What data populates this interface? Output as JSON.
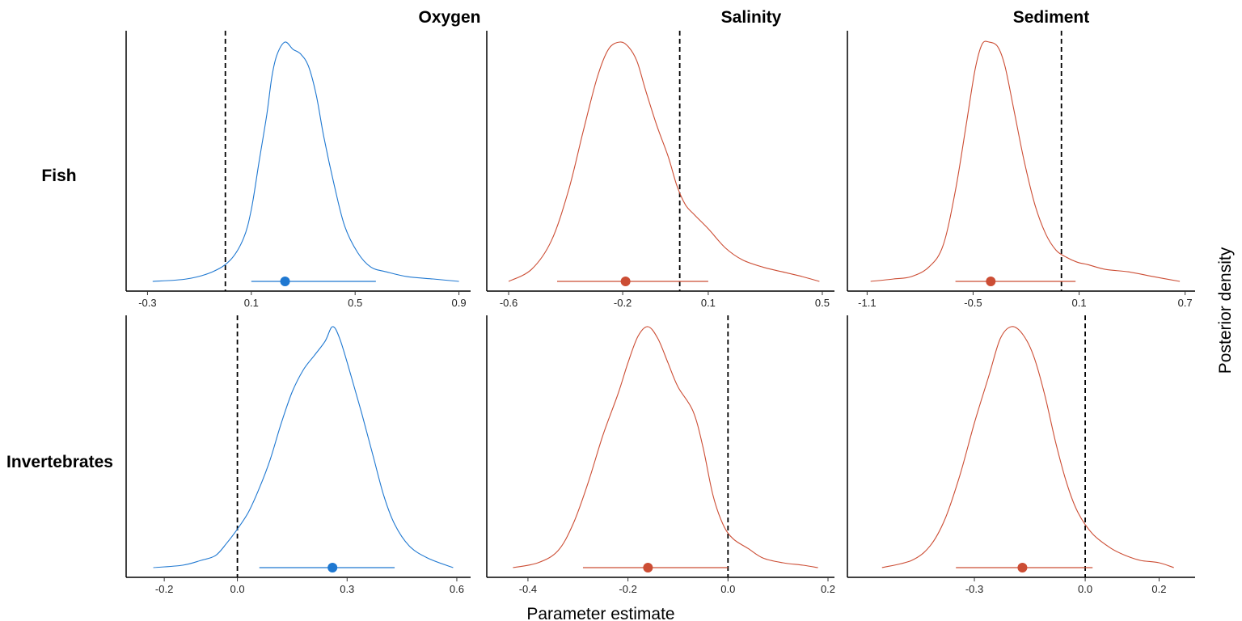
{
  "chart_data": {
    "type": "density-facet",
    "xlabel": "Parameter estimate",
    "ylabel": "Posterior density",
    "columns": [
      "Oxygen",
      "Salinity",
      "Sediment"
    ],
    "rows": [
      "Fish",
      "Invertebrates"
    ],
    "colors": {
      "positive": "#1f78d1",
      "negative": "#cc4d34",
      "reference": "#000000"
    },
    "panels": [
      {
        "row": "Fish",
        "column": "Oxygen",
        "color": "positive",
        "xlim": [
          -0.32,
          0.92
        ],
        "ticks": [
          "-0.3",
          "0.1",
          "0.5",
          "0.9"
        ],
        "tick_values": [
          -0.3,
          0.1,
          0.5,
          0.9
        ],
        "zero_line": 0,
        "density": [
          [
            -0.28,
            0.0
          ],
          [
            -0.15,
            0.01
          ],
          [
            -0.05,
            0.04
          ],
          [
            0.02,
            0.09
          ],
          [
            0.07,
            0.18
          ],
          [
            0.1,
            0.3
          ],
          [
            0.13,
            0.5
          ],
          [
            0.16,
            0.7
          ],
          [
            0.18,
            0.86
          ],
          [
            0.2,
            0.95
          ],
          [
            0.23,
            1.0
          ],
          [
            0.26,
            0.97
          ],
          [
            0.29,
            0.95
          ],
          [
            0.32,
            0.9
          ],
          [
            0.35,
            0.78
          ],
          [
            0.38,
            0.6
          ],
          [
            0.42,
            0.4
          ],
          [
            0.46,
            0.23
          ],
          [
            0.51,
            0.12
          ],
          [
            0.56,
            0.06
          ],
          [
            0.62,
            0.04
          ],
          [
            0.7,
            0.02
          ],
          [
            0.8,
            0.01
          ],
          [
            0.9,
            0.0
          ]
        ],
        "point": 0.23,
        "interval": [
          0.1,
          0.58
        ]
      },
      {
        "row": "Fish",
        "column": "Salinity",
        "color": "negative",
        "xlim": [
          -0.62,
          0.52
        ],
        "ticks": [
          "-0.6",
          "-0.2",
          "0.1",
          "0.5"
        ],
        "tick_values": [
          -0.6,
          -0.2,
          0.1,
          0.5
        ],
        "zero_line": 0,
        "density": [
          [
            -0.6,
            0.0
          ],
          [
            -0.52,
            0.05
          ],
          [
            -0.45,
            0.17
          ],
          [
            -0.39,
            0.38
          ],
          [
            -0.34,
            0.62
          ],
          [
            -0.29,
            0.85
          ],
          [
            -0.25,
            0.97
          ],
          [
            -0.21,
            1.0
          ],
          [
            -0.18,
            0.98
          ],
          [
            -0.15,
            0.92
          ],
          [
            -0.12,
            0.8
          ],
          [
            -0.08,
            0.65
          ],
          [
            -0.04,
            0.52
          ],
          [
            -0.01,
            0.4
          ],
          [
            0.02,
            0.32
          ],
          [
            0.05,
            0.28
          ],
          [
            0.1,
            0.22
          ],
          [
            0.16,
            0.14
          ],
          [
            0.22,
            0.09
          ],
          [
            0.29,
            0.06
          ],
          [
            0.36,
            0.04
          ],
          [
            0.43,
            0.02
          ],
          [
            0.49,
            0.0
          ]
        ],
        "point": -0.19,
        "interval": [
          -0.43,
          0.1
        ]
      },
      {
        "row": "Fish",
        "column": "Sediment",
        "color": "negative",
        "xlim": [
          -1.12,
          0.72
        ],
        "ticks": [
          "-1.1",
          "-0.5",
          "0.1",
          "0.7"
        ],
        "tick_values": [
          -1.1,
          -0.5,
          0.1,
          0.7
        ],
        "zero_line": 0,
        "density": [
          [
            -1.08,
            0.0
          ],
          [
            -0.95,
            0.01
          ],
          [
            -0.85,
            0.02
          ],
          [
            -0.75,
            0.06
          ],
          [
            -0.67,
            0.15
          ],
          [
            -0.6,
            0.38
          ],
          [
            -0.54,
            0.65
          ],
          [
            -0.49,
            0.88
          ],
          [
            -0.45,
            0.99
          ],
          [
            -0.41,
            1.0
          ],
          [
            -0.36,
            0.98
          ],
          [
            -0.32,
            0.9
          ],
          [
            -0.27,
            0.72
          ],
          [
            -0.21,
            0.5
          ],
          [
            -0.15,
            0.32
          ],
          [
            -0.09,
            0.2
          ],
          [
            -0.03,
            0.13
          ],
          [
            0.03,
            0.1
          ],
          [
            0.09,
            0.08
          ],
          [
            0.15,
            0.07
          ],
          [
            0.25,
            0.05
          ],
          [
            0.38,
            0.04
          ],
          [
            0.52,
            0.02
          ],
          [
            0.67,
            0.0
          ]
        ],
        "point": -0.4,
        "interval": [
          -0.6,
          0.08
        ]
      },
      {
        "row": "Invertebrates",
        "column": "Oxygen",
        "color": "positive",
        "xlim": [
          -0.26,
          0.62
        ],
        "ticks": [
          "-0.2",
          "0.0",
          "0.3",
          "0.6"
        ],
        "tick_values": [
          -0.2,
          0.0,
          0.3,
          0.6
        ],
        "zero_line": 0,
        "density": [
          [
            -0.23,
            0.0
          ],
          [
            -0.15,
            0.01
          ],
          [
            -0.1,
            0.03
          ],
          [
            -0.06,
            0.05
          ],
          [
            -0.03,
            0.1
          ],
          [
            0.0,
            0.16
          ],
          [
            0.03,
            0.23
          ],
          [
            0.06,
            0.33
          ],
          [
            0.09,
            0.45
          ],
          [
            0.12,
            0.6
          ],
          [
            0.15,
            0.73
          ],
          [
            0.18,
            0.82
          ],
          [
            0.21,
            0.88
          ],
          [
            0.24,
            0.94
          ],
          [
            0.26,
            1.0
          ],
          [
            0.28,
            0.95
          ],
          [
            0.31,
            0.8
          ],
          [
            0.34,
            0.64
          ],
          [
            0.37,
            0.47
          ],
          [
            0.4,
            0.3
          ],
          [
            0.43,
            0.18
          ],
          [
            0.47,
            0.09
          ],
          [
            0.52,
            0.04
          ],
          [
            0.59,
            0.0
          ]
        ],
        "point": 0.26,
        "interval": [
          0.06,
          0.43
        ]
      },
      {
        "row": "Invertebrates",
        "column": "Salinity",
        "color": "negative",
        "xlim": [
          -0.45,
          0.2
        ],
        "ticks": [
          "-0.4",
          "-0.2",
          "0.0",
          "0.2"
        ],
        "tick_values": [
          -0.4,
          -0.2,
          0.0,
          0.2
        ],
        "zero_line": 0,
        "density": [
          [
            -0.43,
            0.0
          ],
          [
            -0.38,
            0.02
          ],
          [
            -0.34,
            0.07
          ],
          [
            -0.31,
            0.18
          ],
          [
            -0.28,
            0.35
          ],
          [
            -0.25,
            0.55
          ],
          [
            -0.22,
            0.72
          ],
          [
            -0.2,
            0.85
          ],
          [
            -0.18,
            0.96
          ],
          [
            -0.16,
            1.0
          ],
          [
            -0.14,
            0.95
          ],
          [
            -0.12,
            0.85
          ],
          [
            -0.1,
            0.75
          ],
          [
            -0.07,
            0.65
          ],
          [
            -0.05,
            0.5
          ],
          [
            -0.03,
            0.3
          ],
          [
            -0.01,
            0.18
          ],
          [
            0.01,
            0.12
          ],
          [
            0.04,
            0.08
          ],
          [
            0.07,
            0.04
          ],
          [
            0.11,
            0.02
          ],
          [
            0.15,
            0.01
          ],
          [
            0.18,
            0.0
          ]
        ],
        "point": -0.16,
        "interval": [
          -0.29,
          0.0
        ]
      },
      {
        "row": "Invertebrates",
        "column": "Sediment",
        "color": "negative",
        "xlim": [
          -0.6,
          0.28
        ],
        "ticks": [
          "-0.3",
          "0.0",
          "0.2"
        ],
        "tick_values": [
          -0.3,
          0.0,
          0.2
        ],
        "zero_line": 0,
        "density": [
          [
            -0.55,
            0.0
          ],
          [
            -0.47,
            0.03
          ],
          [
            -0.42,
            0.09
          ],
          [
            -0.38,
            0.2
          ],
          [
            -0.34,
            0.38
          ],
          [
            -0.3,
            0.6
          ],
          [
            -0.26,
            0.8
          ],
          [
            -0.23,
            0.95
          ],
          [
            -0.2,
            1.0
          ],
          [
            -0.17,
            0.97
          ],
          [
            -0.14,
            0.88
          ],
          [
            -0.11,
            0.72
          ],
          [
            -0.08,
            0.52
          ],
          [
            -0.05,
            0.35
          ],
          [
            -0.02,
            0.23
          ],
          [
            0.02,
            0.14
          ],
          [
            0.07,
            0.08
          ],
          [
            0.11,
            0.05
          ],
          [
            0.15,
            0.03
          ],
          [
            0.2,
            0.02
          ],
          [
            0.24,
            0.0
          ]
        ],
        "point": -0.17,
        "interval": [
          -0.35,
          0.02
        ]
      }
    ]
  }
}
